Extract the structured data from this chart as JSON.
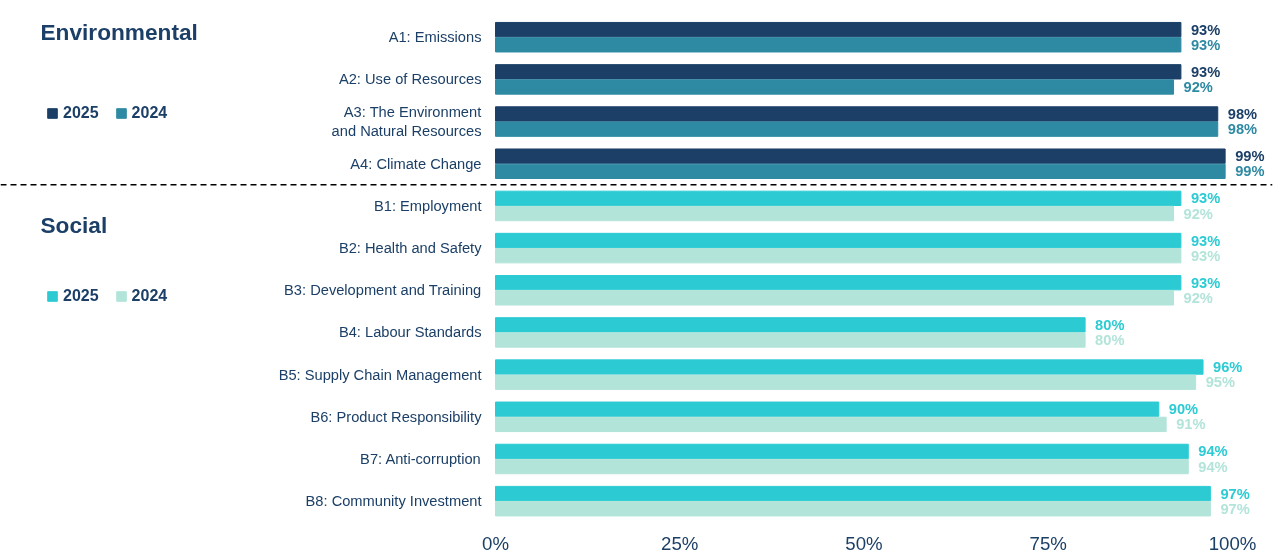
{
  "chart_data": {
    "type": "bar",
    "orientation": "horizontal",
    "categories": [
      "A1: Emissions",
      "A2: Use of Resources",
      "A3: The Environment\nand Natural Resources",
      "A4: Climate Change",
      "B1: Employment",
      "B2: Health and Safety",
      "B3: Development and Training",
      "B4: Labour Standards",
      "B5: Supply Chain Management",
      "B6: Product Responsibility",
      "B7: Anti-corruption",
      "B8: Community Investment"
    ],
    "series": [
      {
        "name": "2025",
        "color": "#1b3f66",
        "values": [
          93,
          93,
          98,
          99,
          null,
          null,
          null,
          null,
          null,
          null,
          null,
          null
        ],
        "value_labels": [
          "93%",
          "93%",
          "98%",
          "99%",
          null,
          null,
          null,
          null,
          null,
          null,
          null,
          null
        ]
      },
      {
        "name": "2024",
        "color": "#2e8aa3",
        "values": [
          93,
          92,
          98,
          99,
          null,
          null,
          null,
          null,
          null,
          null,
          null,
          null
        ],
        "value_labels": [
          "93%",
          "92%",
          "98%",
          "99%",
          null,
          null,
          null,
          null,
          null,
          null,
          null,
          null
        ]
      },
      {
        "name": "2025",
        "color": "#2ccbd3",
        "values": [
          null,
          null,
          null,
          null,
          93,
          93,
          93,
          80,
          96,
          90,
          94,
          97
        ],
        "value_labels": [
          null,
          null,
          null,
          null,
          "93%",
          "93%",
          "93%",
          "80%",
          "96%",
          "90%",
          "94%",
          "97%"
        ]
      },
      {
        "name": "2024",
        "color": "#b3e4d9",
        "values": [
          null,
          null,
          null,
          null,
          92,
          93,
          92,
          80,
          95,
          91,
          94,
          97
        ],
        "value_labels": [
          null,
          null,
          null,
          null,
          "92%",
          "93%",
          "92%",
          "80%",
          "95%",
          "91%",
          "94%",
          "97%"
        ]
      }
    ],
    "xlim": [
      0,
      100
    ],
    "xticks": [
      {
        "value": 0,
        "label": "0%"
      },
      {
        "value": 25,
        "label": "25%"
      },
      {
        "value": 50,
        "label": "50%"
      },
      {
        "value": 75,
        "label": "75%"
      },
      {
        "value": 100,
        "label": "100%"
      }
    ],
    "annotations": [
      "Environmental",
      "Social"
    ],
    "legend": "left",
    "grid": false
  }
}
